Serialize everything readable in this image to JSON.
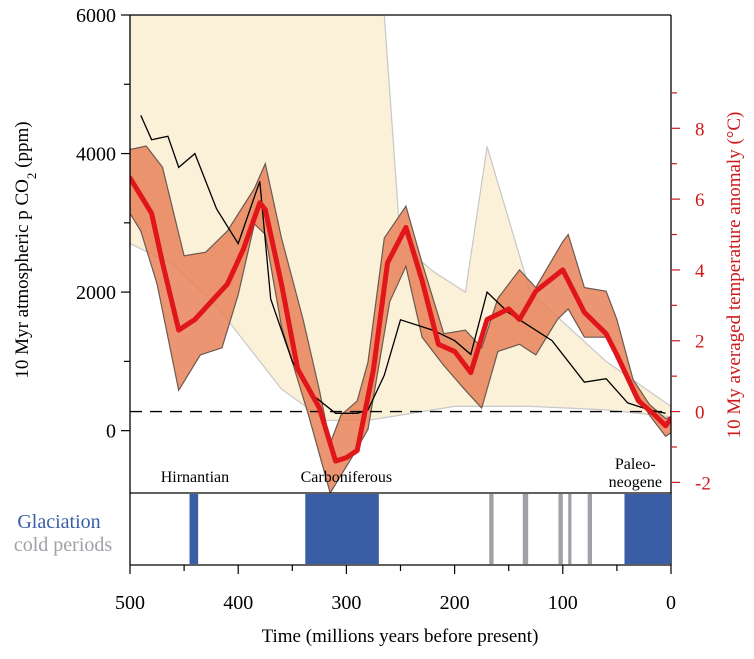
{
  "chart_data": {
    "type": "line",
    "title": "",
    "xlabel": "Time (millions years before present)",
    "ylabel_left": "10 Myr atmospheric p CO",
    "ylabel_left_sub": "2",
    "ylabel_left_unit": " (ppm)",
    "ylabel_right": "10 My averaged temperature anomaly (°C)",
    "xlim": [
      500,
      0
    ],
    "ylim_left": [
      -900,
      6000
    ],
    "ylim_right": [
      -2.3,
      11.2
    ],
    "x_ticks": [
      500,
      400,
      300,
      200,
      100,
      0
    ],
    "y_ticks_left": [
      0,
      2000,
      4000,
      6000
    ],
    "y_ticks_right": [
      -2,
      0,
      2,
      4,
      6,
      8
    ],
    "reference_line": {
      "axis": "right",
      "value": 0,
      "style": "dashed"
    },
    "period_labels": [
      {
        "text": "Hirnantian",
        "x": 440
      },
      {
        "text": "Carboniferous",
        "x": 300
      },
      {
        "text": "Paleo-",
        "x": 33
      },
      {
        "text": "neogene",
        "x": 33
      }
    ],
    "co2_uncertainty": {
      "name": "",
      "axis": "left",
      "color": "#fbf0d8",
      "upper": [
        [
          500,
          6000
        ],
        [
          265,
          6000
        ],
        [
          250,
          2700
        ],
        [
          220,
          2300
        ],
        [
          190,
          2000
        ],
        [
          170,
          4100
        ],
        [
          130,
          2000
        ],
        [
          60,
          1000
        ],
        [
          0,
          350
        ]
      ],
      "lower": [
        [
          0,
          200
        ],
        [
          60,
          300
        ],
        [
          130,
          350
        ],
        [
          200,
          350
        ],
        [
          280,
          150
        ],
        [
          320,
          150
        ],
        [
          360,
          600
        ],
        [
          420,
          1800
        ],
        [
          460,
          2400
        ],
        [
          500,
          2700
        ]
      ]
    },
    "co2_series": {
      "name": "",
      "axis": "left",
      "color": "#000000",
      "points": [
        [
          490,
          4550
        ],
        [
          480,
          4200
        ],
        [
          465,
          4250
        ],
        [
          455,
          3800
        ],
        [
          440,
          4000
        ],
        [
          420,
          3200
        ],
        [
          400,
          2700
        ],
        [
          380,
          3600
        ],
        [
          370,
          1900
        ],
        [
          350,
          1000
        ],
        [
          330,
          500
        ],
        [
          310,
          250
        ],
        [
          290,
          250
        ],
        [
          280,
          300
        ],
        [
          265,
          800
        ],
        [
          250,
          1600
        ],
        [
          220,
          1450
        ],
        [
          200,
          1300
        ],
        [
          185,
          1100
        ],
        [
          170,
          2000
        ],
        [
          150,
          1700
        ],
        [
          130,
          1500
        ],
        [
          110,
          1300
        ],
        [
          80,
          700
        ],
        [
          60,
          750
        ],
        [
          40,
          400
        ],
        [
          20,
          300
        ],
        [
          5,
          250
        ]
      ]
    },
    "temperature_uncertainty": {
      "name": "",
      "axis": "right",
      "color": "#e8825a",
      "upper": [
        [
          500,
          7.4
        ],
        [
          485,
          7.5
        ],
        [
          470,
          6.9
        ],
        [
          450,
          4.4
        ],
        [
          430,
          4.5
        ],
        [
          410,
          5.1
        ],
        [
          385,
          6.3
        ],
        [
          375,
          7.0
        ],
        [
          360,
          4.9
        ],
        [
          340,
          2.6
        ],
        [
          325,
          0.6
        ],
        [
          315,
          -0.9
        ],
        [
          305,
          -0.1
        ],
        [
          290,
          0.3
        ],
        [
          280,
          1.4
        ],
        [
          265,
          4.9
        ],
        [
          245,
          5.8
        ],
        [
          230,
          4.2
        ],
        [
          210,
          2.2
        ],
        [
          190,
          2.3
        ],
        [
          175,
          1.8
        ],
        [
          160,
          3.2
        ],
        [
          140,
          4.0
        ],
        [
          125,
          3.5
        ],
        [
          100,
          4.8
        ],
        [
          95,
          5.0
        ],
        [
          80,
          3.5
        ],
        [
          60,
          3.4
        ],
        [
          50,
          2.6
        ],
        [
          35,
          0.9
        ],
        [
          20,
          0.2
        ],
        [
          5,
          -0.2
        ],
        [
          -5,
          -0.1
        ]
      ],
      "lower": [
        [
          -5,
          -0.5
        ],
        [
          5,
          -0.7
        ],
        [
          20,
          -0.1
        ],
        [
          35,
          0.7
        ],
        [
          50,
          1.7
        ],
        [
          60,
          2.1
        ],
        [
          80,
          2.1
        ],
        [
          95,
          2.9
        ],
        [
          105,
          2.6
        ],
        [
          125,
          1.6
        ],
        [
          140,
          1.9
        ],
        [
          160,
          1.7
        ],
        [
          175,
          0.1
        ],
        [
          190,
          0.6
        ],
        [
          210,
          1.3
        ],
        [
          230,
          2.1
        ],
        [
          245,
          4.1
        ],
        [
          260,
          3.1
        ],
        [
          280,
          -0.5
        ],
        [
          295,
          -1.3
        ],
        [
          315,
          -2.3
        ],
        [
          335,
          -0.1
        ],
        [
          360,
          2.4
        ],
        [
          375,
          5.0
        ],
        [
          385,
          5.3
        ],
        [
          400,
          3.3
        ],
        [
          415,
          1.8
        ],
        [
          435,
          1.6
        ],
        [
          455,
          0.6
        ],
        [
          475,
          3.6
        ],
        [
          490,
          5.1
        ],
        [
          500,
          5.6
        ]
      ]
    },
    "temperature_series": {
      "name": "",
      "axis": "right",
      "color": "#e0161a",
      "points": [
        [
          500,
          6.6
        ],
        [
          490,
          6.1
        ],
        [
          480,
          5.6
        ],
        [
          470,
          4.2
        ],
        [
          455,
          2.3
        ],
        [
          440,
          2.6
        ],
        [
          425,
          3.1
        ],
        [
          410,
          3.6
        ],
        [
          395,
          4.6
        ],
        [
          380,
          5.9
        ],
        [
          375,
          5.7
        ],
        [
          360,
          3.6
        ],
        [
          345,
          1.2
        ],
        [
          325,
          0.1
        ],
        [
          310,
          -1.4
        ],
        [
          300,
          -1.3
        ],
        [
          290,
          -1.1
        ],
        [
          275,
          1.2
        ],
        [
          262,
          4.2
        ],
        [
          245,
          5.2
        ],
        [
          230,
          3.7
        ],
        [
          215,
          1.9
        ],
        [
          200,
          1.7
        ],
        [
          185,
          1.1
        ],
        [
          170,
          2.6
        ],
        [
          150,
          2.9
        ],
        [
          140,
          2.6
        ],
        [
          125,
          3.4
        ],
        [
          100,
          4.0
        ],
        [
          80,
          2.8
        ],
        [
          60,
          2.2
        ],
        [
          50,
          1.6
        ],
        [
          30,
          0.3
        ],
        [
          15,
          -0.1
        ],
        [
          5,
          -0.4
        ],
        [
          0,
          -0.2
        ],
        [
          -5,
          -0.1
        ]
      ]
    },
    "glaciation_panel": {
      "legend": [
        {
          "label": "Glaciation",
          "color": "#3a5ea6"
        },
        {
          "label": "cold periods",
          "color": "#9ea2a6"
        }
      ],
      "glaciations": [
        [
          445,
          437
        ],
        [
          338,
          270
        ],
        [
          43,
          0
        ]
      ],
      "cold_periods": [
        [
          168,
          164
        ],
        [
          137,
          132
        ],
        [
          104,
          100
        ],
        [
          95,
          92
        ],
        [
          77,
          73
        ]
      ]
    }
  }
}
